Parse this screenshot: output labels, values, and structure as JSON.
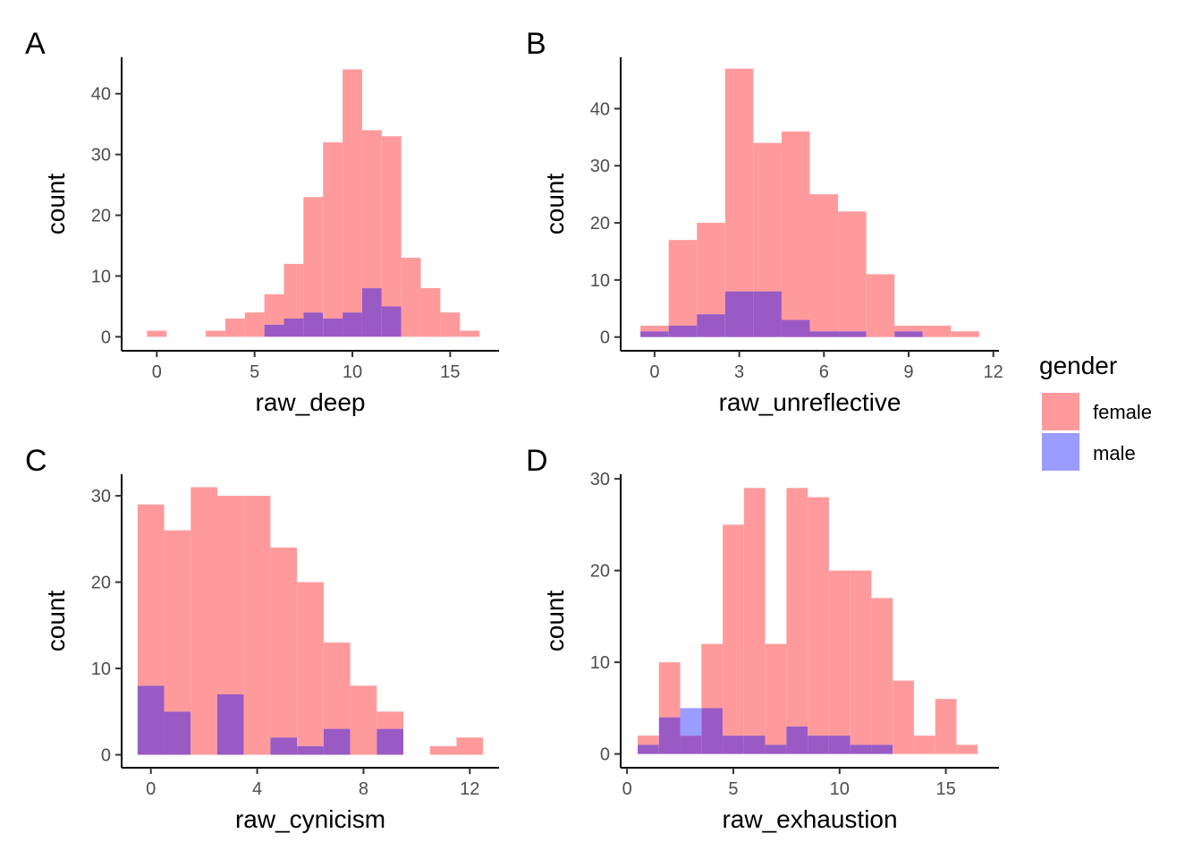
{
  "legend": {
    "title": "gender",
    "entries": [
      {
        "label": "female",
        "color": "#ff9a9c"
      },
      {
        "label": "male",
        "color": "#9b9cff"
      }
    ]
  },
  "colors": {
    "female": "#ff9a9c",
    "male": "#9b9cff",
    "overlap": "#9a5ac4"
  },
  "chart_data": [
    {
      "type": "bar",
      "subtype": "histogram",
      "tag": "A",
      "xlabel": "raw_deep",
      "ylabel": "count",
      "x_ticks": [
        0,
        5,
        10,
        15
      ],
      "y_ticks": [
        0,
        10,
        20,
        30,
        40
      ],
      "xlim": [
        -1.8,
        17.5
      ],
      "ylim": [
        -2.3,
        46
      ],
      "bin_width": 1,
      "bin_centers": [
        0,
        1,
        2,
        3,
        4,
        5,
        6,
        7,
        8,
        9,
        10,
        11,
        12,
        13,
        14,
        15,
        16
      ],
      "series": [
        {
          "name": "female",
          "values": [
            1,
            0,
            0,
            1,
            3,
            4,
            7,
            12,
            23,
            32,
            44,
            34,
            33,
            13,
            8,
            4,
            1
          ]
        },
        {
          "name": "male",
          "values": [
            0,
            0,
            0,
            0,
            0,
            0,
            2,
            3,
            4,
            3,
            4,
            8,
            5,
            0,
            0,
            0,
            0
          ]
        }
      ]
    },
    {
      "type": "bar",
      "subtype": "histogram",
      "tag": "B",
      "xlabel": "raw_unreflective",
      "ylabel": "count",
      "x_ticks": [
        0,
        3,
        6,
        9,
        12
      ],
      "y_ticks": [
        0,
        10,
        20,
        30,
        40
      ],
      "xlim": [
        -1.2,
        12.2
      ],
      "ylim": [
        -2.4,
        49
      ],
      "bin_width": 1,
      "bin_centers": [
        0,
        1,
        2,
        3,
        4,
        5,
        6,
        7,
        8,
        9,
        10,
        11
      ],
      "series": [
        {
          "name": "female",
          "values": [
            2,
            17,
            20,
            47,
            34,
            36,
            25,
            22,
            11,
            2,
            2,
            1
          ]
        },
        {
          "name": "male",
          "values": [
            1,
            2,
            4,
            8,
            8,
            3,
            1,
            1,
            0,
            1,
            0,
            0
          ]
        }
      ]
    },
    {
      "type": "bar",
      "subtype": "histogram",
      "tag": "C",
      "xlabel": "raw_cynicism",
      "ylabel": "count",
      "x_ticks": [
        0,
        4,
        8,
        12
      ],
      "y_ticks": [
        0,
        10,
        20,
        30
      ],
      "xlim": [
        -1.1,
        13.1
      ],
      "ylim": [
        -1.5,
        32.5
      ],
      "bin_width": 1,
      "bin_centers": [
        0,
        1,
        2,
        3,
        4,
        5,
        6,
        7,
        8,
        9,
        10,
        11,
        12
      ],
      "series": [
        {
          "name": "female",
          "values": [
            29,
            26,
            31,
            30,
            30,
            24,
            20,
            13,
            8,
            5,
            0,
            1,
            2
          ]
        },
        {
          "name": "male",
          "values": [
            8,
            5,
            0,
            7,
            0,
            2,
            1,
            3,
            0,
            3,
            0,
            0,
            0
          ]
        }
      ]
    },
    {
      "type": "bar",
      "subtype": "histogram",
      "tag": "D",
      "xlabel": "raw_exhaustion",
      "ylabel": "count",
      "x_ticks": [
        0,
        5,
        10,
        15
      ],
      "y_ticks": [
        0,
        10,
        20,
        30
      ],
      "xlim": [
        -0.3,
        17.5
      ],
      "ylim": [
        -1.5,
        30.5
      ],
      "bin_width": 1,
      "bin_centers": [
        1,
        2,
        3,
        4,
        5,
        6,
        7,
        8,
        9,
        10,
        11,
        12,
        13,
        14,
        15,
        16
      ],
      "series": [
        {
          "name": "female",
          "values": [
            2,
            10,
            2,
            12,
            25,
            29,
            12,
            29,
            28,
            20,
            20,
            17,
            8,
            2,
            6,
            1
          ]
        },
        {
          "name": "male",
          "values": [
            1,
            4,
            5,
            5,
            2,
            2,
            1,
            3,
            2,
            2,
            1,
            1,
            0,
            0,
            0,
            0
          ]
        }
      ]
    }
  ]
}
